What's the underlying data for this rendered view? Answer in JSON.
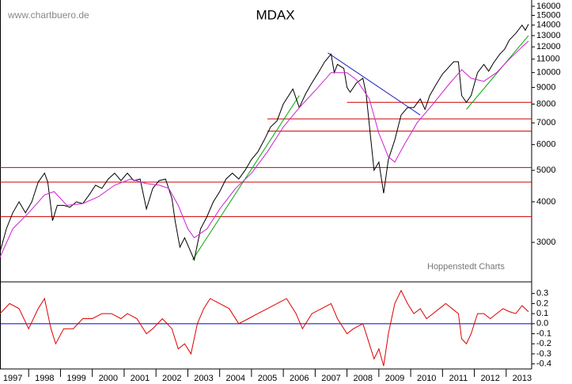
{
  "chart_data": [
    {
      "type": "line",
      "title": "MDAX",
      "source": "www.chartbuero.de",
      "credit": "Hoppenstedt Charts",
      "log_scale": true,
      "xlim": [
        1997.1,
        2013.8
      ],
      "ylim": [
        2280,
        16730
      ],
      "yticks": [
        3000,
        4000,
        5000,
        6000,
        7000,
        8000,
        9000,
        10000,
        11000,
        12000,
        13000,
        14000,
        15000,
        16000
      ],
      "series": [
        {
          "color": "#000000",
          "x": [
            1997.1,
            1997.3,
            1997.5,
            1997.7,
            1997.9,
            1998.1,
            1998.3,
            1998.5,
            1998.6,
            1998.75,
            1998.9,
            1999.1,
            1999.3,
            1999.5,
            1999.7,
            1999.9,
            2000.1,
            2000.3,
            2000.5,
            2000.7,
            2000.9,
            2001.1,
            2001.3,
            2001.5,
            2001.7,
            2001.9,
            2002.1,
            2002.3,
            2002.5,
            2002.6,
            2002.75,
            2002.9,
            2003.2,
            2003.4,
            2003.6,
            2003.8,
            2004.0,
            2004.2,
            2004.4,
            2004.6,
            2004.8,
            2005.0,
            2005.2,
            2005.4,
            2005.6,
            2005.8,
            2006.0,
            2006.3,
            2006.5,
            2006.7,
            2006.9,
            2007.1,
            2007.3,
            2007.5,
            2007.6,
            2007.7,
            2007.9,
            2008.0,
            2008.1,
            2008.3,
            2008.5,
            2008.6,
            2008.75,
            2008.85,
            2009.0,
            2009.15,
            2009.3,
            2009.5,
            2009.7,
            2009.9,
            2010.1,
            2010.3,
            2010.45,
            2010.6,
            2010.8,
            2011.0,
            2011.2,
            2011.35,
            2011.5,
            2011.6,
            2011.75,
            2011.9,
            2012.1,
            2012.3,
            2012.45,
            2012.6,
            2012.8,
            2012.95,
            2013.1,
            2013.3,
            2013.5,
            2013.6,
            2013.7
          ],
          "values": [
            2800,
            3300,
            3700,
            4000,
            3700,
            4000,
            4600,
            4900,
            4600,
            3500,
            3900,
            3900,
            3850,
            4000,
            3950,
            4200,
            4500,
            4400,
            4700,
            4900,
            4650,
            4900,
            4650,
            4700,
            3800,
            4400,
            4650,
            4700,
            4100,
            3500,
            2900,
            3100,
            2650,
            3300,
            3600,
            4000,
            4300,
            4700,
            4900,
            4700,
            5000,
            5400,
            5700,
            6200,
            6800,
            7100,
            8000,
            8900,
            7800,
            8600,
            9300,
            10000,
            10800,
            11400,
            10000,
            10600,
            10300,
            9000,
            8700,
            9300,
            9600,
            8600,
            6200,
            5000,
            5300,
            4250,
            5400,
            6200,
            7400,
            7800,
            7800,
            8300,
            7700,
            8500,
            9200,
            9900,
            10400,
            10800,
            10800,
            8500,
            8100,
            8500,
            10000,
            10600,
            10100,
            10700,
            11400,
            11800,
            12600,
            13200,
            14000,
            13500,
            14100
          ]
        },
        {
          "color": "#d020d0",
          "x": [
            1997.1,
            1997.5,
            1998.0,
            1998.5,
            1998.8,
            1999.2,
            1999.7,
            2000.2,
            2000.7,
            2001.2,
            2001.7,
            2002.1,
            2002.4,
            2002.7,
            2003.0,
            2003.2,
            2003.6,
            2004.0,
            2004.5,
            2005.0,
            2005.5,
            2006.0,
            2006.5,
            2007.0,
            2007.5,
            2008.0,
            2008.3,
            2008.7,
            2009.0,
            2009.3,
            2009.5,
            2009.8,
            2010.2,
            2010.7,
            2011.2,
            2011.6,
            2011.9,
            2012.3,
            2012.7,
            2013.1,
            2013.5,
            2013.7
          ],
          "values": [
            2700,
            3300,
            3700,
            4200,
            4300,
            3900,
            3950,
            4150,
            4500,
            4700,
            4550,
            4500,
            4400,
            3900,
            3300,
            3100,
            3300,
            3800,
            4400,
            4900,
            5700,
            6800,
            7800,
            8800,
            10000,
            10000,
            9500,
            8300,
            6500,
            5500,
            5300,
            6000,
            7000,
            8000,
            9200,
            10200,
            9600,
            9400,
            10000,
            11000,
            12000,
            12500
          ]
        }
      ],
      "hlines": [
        {
          "value": 3600,
          "from": 1997.1
        },
        {
          "value": 4600,
          "from": 1997.1
        },
        {
          "value": 5100,
          "from": 1997.1
        },
        {
          "value": 6600,
          "from": 2005.5
        },
        {
          "value": 7200,
          "from": 2005.5
        },
        {
          "value": 8100,
          "from": 2008.0
        }
      ],
      "hline_color": "#cc0000",
      "trendlines": [
        {
          "color": "#00aa00",
          "x": [
            2003.15,
            2006.5
          ],
          "values": [
            2650,
            8500
          ]
        },
        {
          "color": "#00aa00",
          "x": [
            2011.75,
            2013.7
          ],
          "values": [
            7700,
            13000
          ]
        },
        {
          "color": "#2020c0",
          "x": [
            2007.4,
            2010.3
          ],
          "values": [
            11500,
            7400
          ]
        }
      ]
    },
    {
      "type": "line",
      "xlim": [
        1997.1,
        2013.8
      ],
      "ylim": [
        -0.45,
        0.4
      ],
      "yticks": [
        0.3,
        0.2,
        0.1,
        {
          "value": 0,
          "label": "0.0"
        },
        -0.1,
        -0.2,
        -0.3,
        -0.4
      ],
      "xticks": [
        1997,
        1998,
        1999,
        2000,
        2001,
        2002,
        2003,
        2004,
        2005,
        2006,
        2007,
        2008,
        2009,
        2010,
        2011,
        2012,
        2013
      ],
      "zero_line_color": "#0000cc",
      "series": [
        {
          "color": "#dd0000",
          "x": [
            1997.1,
            1997.4,
            1997.7,
            1998.0,
            1998.3,
            1998.5,
            1998.7,
            1998.85,
            1999.1,
            1999.4,
            1999.7,
            2000.0,
            2000.3,
            2000.6,
            2000.9,
            2001.1,
            2001.4,
            2001.7,
            2001.9,
            2002.2,
            2002.5,
            2002.7,
            2002.9,
            2003.1,
            2003.3,
            2003.5,
            2003.7,
            2004.0,
            2004.3,
            2004.6,
            2004.9,
            2005.2,
            2005.5,
            2005.8,
            2006.1,
            2006.4,
            2006.6,
            2006.9,
            2007.2,
            2007.5,
            2007.7,
            2008.0,
            2008.2,
            2008.5,
            2008.7,
            2008.85,
            2009.0,
            2009.15,
            2009.3,
            2009.5,
            2009.7,
            2009.9,
            2010.1,
            2010.3,
            2010.5,
            2010.7,
            2010.9,
            2011.1,
            2011.3,
            2011.5,
            2011.6,
            2011.75,
            2011.9,
            2012.1,
            2012.3,
            2012.5,
            2012.7,
            2012.9,
            2013.1,
            2013.3,
            2013.5,
            2013.7
          ],
          "values": [
            0.1,
            0.2,
            0.15,
            -0.05,
            0.15,
            0.25,
            -0.05,
            -0.2,
            -0.05,
            -0.05,
            0.05,
            0.05,
            0.1,
            0.1,
            0.05,
            0.1,
            0.05,
            -0.1,
            -0.05,
            0.05,
            -0.05,
            -0.25,
            -0.2,
            -0.3,
            0,
            0.15,
            0.25,
            0.2,
            0.15,
            0,
            0.05,
            0.1,
            0.15,
            0.2,
            0.25,
            0.1,
            -0.05,
            0.1,
            0.15,
            0.2,
            0.05,
            -0.1,
            -0.05,
            0,
            -0.2,
            -0.35,
            -0.25,
            -0.42,
            -0.1,
            0.2,
            0.33,
            0.2,
            0.1,
            0.15,
            0.05,
            0.1,
            0.15,
            0.2,
            0.15,
            0.1,
            -0.15,
            -0.2,
            -0.1,
            0.1,
            0.1,
            0.05,
            0.1,
            0.15,
            0.12,
            0.1,
            0.18,
            0.12
          ]
        }
      ]
    }
  ]
}
